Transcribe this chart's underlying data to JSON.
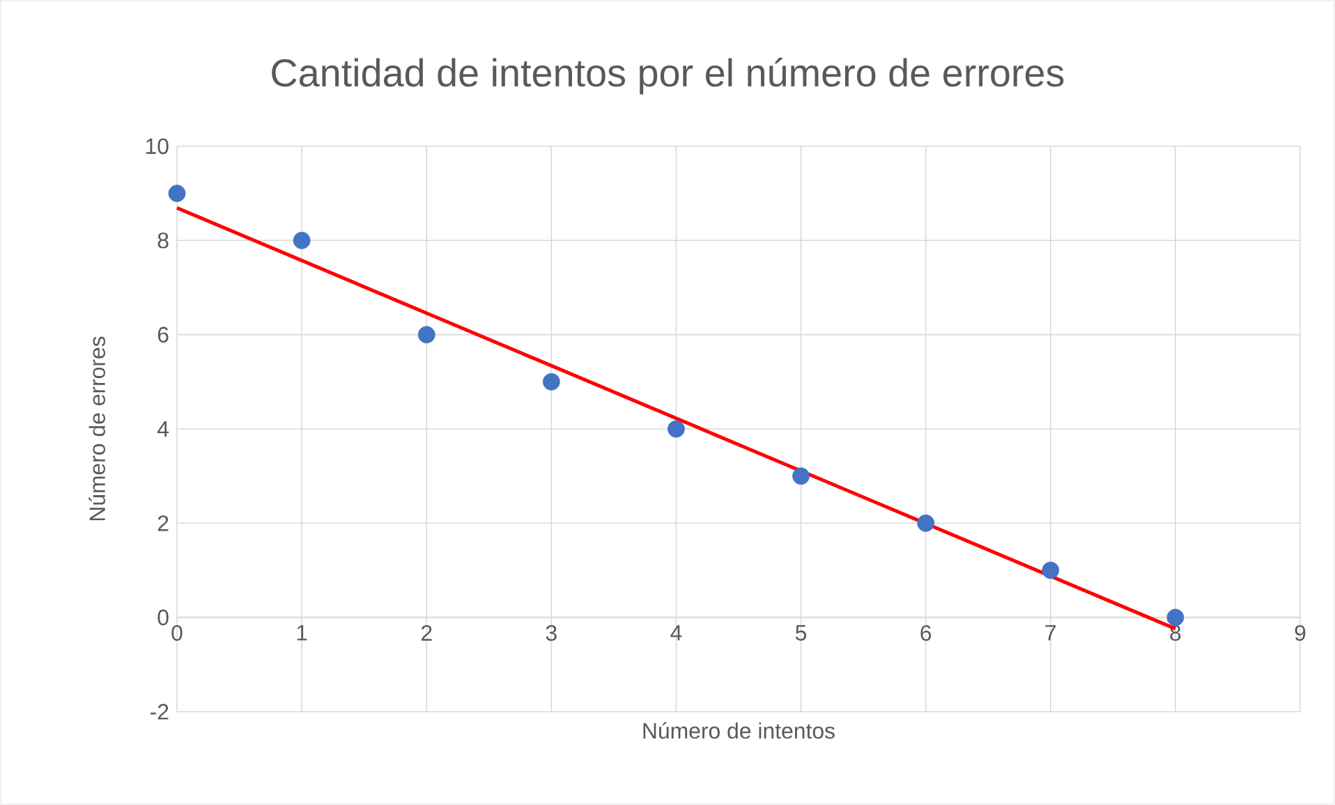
{
  "chart_data": {
    "type": "scatter",
    "title": "Cantidad de intentos por el número de errores",
    "xlabel": "Número  de intentos",
    "ylabel": "Número de errores",
    "series": [
      {
        "type": "scatter",
        "color": "#4472c4",
        "marker": "circle",
        "x": [
          0,
          1,
          2,
          3,
          4,
          5,
          6,
          7,
          8
        ],
        "values": [
          9,
          8,
          6,
          5,
          4,
          3,
          2,
          1,
          0
        ]
      },
      {
        "type": "line",
        "color": "#ff0000",
        "marker": "none",
        "x": [
          0,
          8
        ],
        "values": [
          8.69,
          -0.24
        ]
      }
    ],
    "xlim": [
      0,
      9
    ],
    "ylim": [
      -2,
      10
    ],
    "xticks": [
      0,
      1,
      2,
      3,
      4,
      5,
      6,
      7,
      8,
      9
    ],
    "yticks": [
      -2,
      0,
      2,
      4,
      6,
      8,
      10
    ],
    "grid": true
  }
}
